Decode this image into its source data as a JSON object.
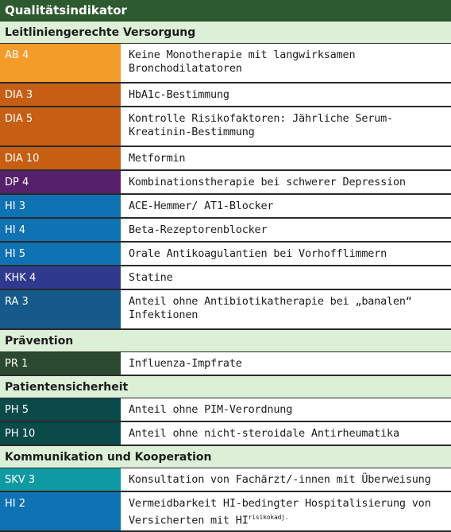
{
  "header": "Qualitätsindikator",
  "colors": {
    "header": "#2e5a30",
    "section": "#dcefd7",
    "ab": "#f39c2a",
    "dia": "#c65f14",
    "dp": "#57206b",
    "hi": "#0f72b3",
    "khk": "#2f3a8f",
    "ra": "#155a8a",
    "pr": "#2c4a2f",
    "ph": "#0a4a49",
    "skv": "#0f9aa3"
  },
  "sections": [
    {
      "title": "Leitliniengerechte Versorgung",
      "rows": [
        {
          "code": "AB 4",
          "desc": "Keine Monotherapie mit langwirksamen Bronchodilatatoren"
        },
        {
          "code": "DIA 3",
          "desc": "HbA1c-Bestimmung"
        },
        {
          "code": "DIA 5",
          "desc": "Kontrolle Risikofaktoren: Jährliche Serum-Kreatinin-Bestimmung"
        },
        {
          "code": "DIA 10",
          "desc": "Metformin"
        },
        {
          "code": "DP 4",
          "desc": "Kombinationstherapie bei schwerer Depression"
        },
        {
          "code": "HI 3",
          "desc": "ACE-Hemmer/ AT1-Blocker"
        },
        {
          "code": "HI 4",
          "desc": "Beta-Rezeptorenblocker"
        },
        {
          "code": "HI 5",
          "desc": "Orale Antikoagulantien bei Vorhofflimmern"
        },
        {
          "code": "KHK 4",
          "desc": "Statine"
        },
        {
          "code": "RA 3",
          "desc": "Anteil ohne Antibiotikatherapie bei „banalen“ Infektionen"
        }
      ]
    },
    {
      "title": "Prävention",
      "rows": [
        {
          "code": "PR 1",
          "desc": "Influenza-Impfrate"
        }
      ]
    },
    {
      "title": "Patientensicherheit",
      "rows": [
        {
          "code": "PH 5",
          "desc": "Anteil ohne PIM-Verordnung"
        },
        {
          "code": "PH 10",
          "desc": "Anteil ohne nicht-steroidale Antirheumatika"
        }
      ]
    },
    {
      "title": "Kommunikation und Kooperation",
      "rows": [
        {
          "code": "SKV 3",
          "desc": "Konsultation von Fachärzt/-innen mit Überweisung"
        },
        {
          "code": "HI 2",
          "desc": "Vermeidbarkeit HI-bedingter Hospitalisierung von Versicherten mit HI",
          "sup": "risikokadj."
        }
      ]
    }
  ]
}
